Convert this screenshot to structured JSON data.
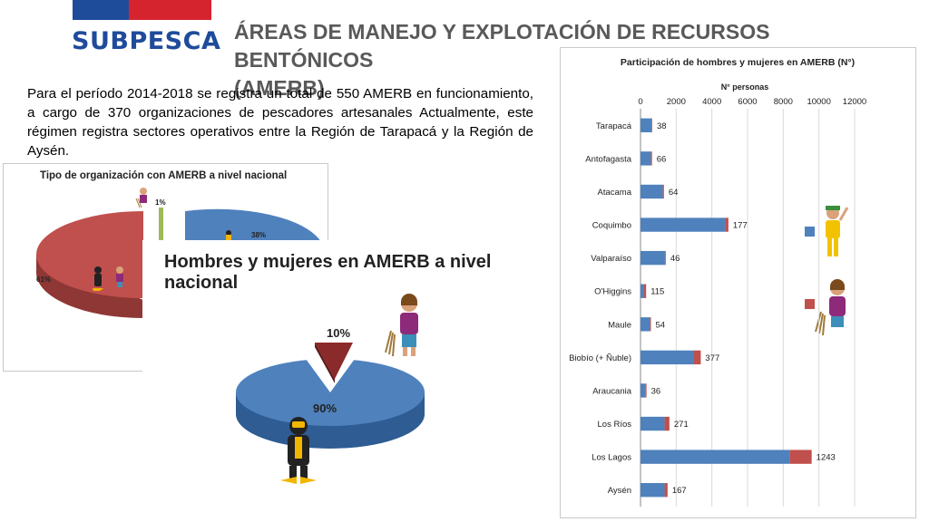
{
  "header": {
    "logo_text": "SUBPESCA",
    "title_line1": "ÁREAS DE MANEJO Y EXPLOTACIÓN DE RECURSOS BENTÓNICOS",
    "title_line2": "(AMERB)",
    "brand_colors": {
      "blue": "#1f4b9b",
      "red": "#d6242f"
    }
  },
  "intro_text": "Para el período 2014-2018 se registra un total de 550 AMERB en funcionamiento, a cargo de 370 organizaciones de pescadores artesanales Actualmente, este régimen registra sectores operativos entre la Región de Tarapacá y la Región de Aysén.",
  "chart_data": [
    {
      "type": "pie",
      "title": "Tipo de organización con AMERB a nivel nacional",
      "labels": [
        "61%",
        "38%",
        "1%"
      ],
      "values": [
        61,
        38,
        1
      ],
      "colors": [
        "#c0504d",
        "#4f81bd",
        "#9bbb59"
      ],
      "icons": [
        "diver-icon",
        "fisherwoman-icon",
        "collector-icon"
      ]
    },
    {
      "type": "pie",
      "title": "Hombres y mujeres en AMERB a nivel nacional",
      "labels": [
        "90%",
        "10%"
      ],
      "values": [
        90,
        10
      ],
      "colors": [
        "#4f81bd",
        "#8b2a2a"
      ],
      "icons": [
        "diver-icon",
        "fisherwoman-icon"
      ]
    },
    {
      "type": "bar",
      "orientation": "horizontal",
      "stacked": true,
      "title": "Participación de hombres y mujeres en AMERB (N°)",
      "xlabel": "N° personas",
      "xlim": [
        0,
        12000
      ],
      "xticks": [
        "0",
        "2000",
        "4000",
        "6000",
        "8000",
        "10000",
        "12000"
      ],
      "categories": [
        "Tarapacá",
        "Antofagasta",
        "Atacama",
        "Coquimbo",
        "Valparaíso",
        "O'Higgins",
        "Maule",
        "Biobío (+ Ñuble)",
        "Araucania",
        "Los Ríos",
        "Los Lagos",
        "Aysén"
      ],
      "series": [
        {
          "color": "#4f81bd",
          "values": [
            620,
            580,
            1250,
            4750,
            1370,
            200,
            530,
            3000,
            300,
            1350,
            8350,
            1350
          ]
        },
        {
          "color": "#c0504d",
          "values": [
            38,
            66,
            64,
            177,
            46,
            115,
            54,
            377,
            36,
            271,
            1243,
            167
          ]
        }
      ],
      "data_labels": [
        "38",
        "66",
        "64",
        "177",
        "46",
        "115",
        "54",
        "377",
        "36",
        "271",
        "1243",
        "167"
      ],
      "legend_icons": [
        "man-icon",
        "woman-icon"
      ],
      "grid": true
    }
  ]
}
